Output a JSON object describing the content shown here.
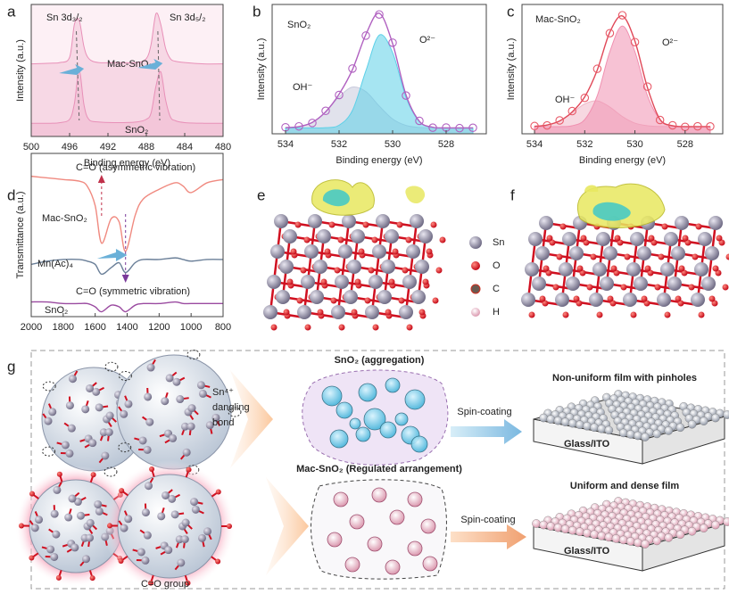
{
  "chart_data": [
    {
      "type": "line",
      "label": "a",
      "xlabel": "Binding energy (eV)",
      "ylabel": "Intensity (a.u.)",
      "annotations": [
        "Sn 3d₃/₂",
        "Sn 3d₅/₂"
      ],
      "x": [
        500,
        498,
        497,
        496,
        495.5,
        495,
        494.5,
        494,
        493,
        491,
        489,
        488,
        487.5,
        487,
        486.5,
        486,
        485.5,
        485,
        484,
        482,
        480
      ],
      "series": [
        {
          "name": "Mac-SnO₂",
          "color": "#e890b8",
          "style": "filled",
          "values": [
            55,
            55.5,
            56,
            60,
            85,
            88,
            68,
            59,
            56,
            56,
            56,
            59,
            70,
            93,
            85,
            67,
            59,
            57,
            56,
            55,
            55
          ]
        },
        {
          "name": "SnO₂",
          "color": "#e890b8",
          "style": "filled",
          "values": [
            10,
            10,
            10.5,
            13,
            25,
            50,
            24,
            13,
            11,
            10.5,
            11,
            13,
            18,
            38,
            49,
            28,
            15,
            12,
            10.5,
            10,
            10
          ]
        }
      ],
      "xlim": [
        500,
        480
      ],
      "ylim": [
        0,
        100
      ],
      "xticks": [
        500,
        496,
        492,
        488,
        484,
        480
      ]
    },
    {
      "type": "line",
      "label": "b",
      "xlabel": "Binding energy (eV)",
      "ylabel": "Intensity (a.u.)",
      "annotations": [
        "SnO₂",
        "OH⁻",
        "O²⁻"
      ],
      "x": [
        534,
        533.5,
        533,
        532.5,
        532,
        531.5,
        531,
        530.5,
        530,
        529.5,
        529,
        528.5,
        528,
        527.5,
        527
      ],
      "series": [
        {
          "color": "#c8cadc",
          "style": "filled",
          "values": [
            5.2,
            6.1,
            9.7,
            18.6,
            31.4,
            39.7,
            35.9,
            23.6,
            12.6,
            7.1,
            5.4,
            5.1,
            5,
            5,
            5
          ]
        },
        {
          "color": "#5cd0e8",
          "style": "filled",
          "values": [
            5,
            5,
            5,
            5.2,
            7.3,
            19.9,
            53.5,
            83.9,
            69.1,
            31,
            10.3,
            5.5,
            5,
            5,
            5
          ]
        },
        {
          "color": "#b060c0",
          "style": "line",
          "values": [
            5.2,
            6.1,
            9.7,
            18.8,
            33.7,
            54.6,
            84.4,
            102.5,
            76.7,
            33.1,
            10.7,
            5.6,
            5,
            5,
            5
          ]
        },
        {
          "color": "#b060c0",
          "style": "markers",
          "values": [
            5.5,
            6.3,
            9.2,
            19.5,
            33,
            55.5,
            83.5,
            101.5,
            77.5,
            32.5,
            11,
            5.2,
            5.3,
            4.8,
            5.1
          ]
        }
      ],
      "xlim": [
        534.5,
        526.5
      ],
      "ylim": [
        0,
        110
      ],
      "xticks": [
        534,
        532,
        530,
        528
      ]
    },
    {
      "type": "line",
      "label": "c",
      "xlabel": "Binding energy (eV)",
      "ylabel": "Intensity (a.u.)",
      "annotations": [
        "Mac-SnO₂",
        "OH⁻",
        "O²⁻"
      ],
      "x": [
        534,
        533.5,
        533,
        532.5,
        532,
        531.5,
        531,
        530.5,
        530,
        529.5,
        529,
        528.5,
        528,
        527.5,
        527
      ],
      "series": [
        {
          "color": "#f0b8c8",
          "style": "filled",
          "values": [
            5.2,
            6.1,
            8.9,
            14.6,
            20.8,
            22.9,
            18.6,
            12,
            7.4,
            5.6,
            5.1,
            5,
            5,
            5,
            5
          ]
        },
        {
          "color": "#f090b0",
          "style": "filled",
          "values": [
            5,
            5,
            5,
            5.6,
            9.9,
            26.5,
            57.1,
            75,
            57.1,
            26.5,
            9.9,
            5.6,
            5,
            5,
            5
          ]
        },
        {
          "color": "#e04858",
          "style": "line",
          "values": [
            5.2,
            6.1,
            8.9,
            15.2,
            25.7,
            44.4,
            70.7,
            82,
            64.5,
            32.1,
            10,
            5.6,
            5,
            5,
            5
          ]
        },
        {
          "color": "#e85a68",
          "style": "markers",
          "values": [
            5.4,
            5.8,
            9.3,
            15.8,
            25,
            45.2,
            70,
            82.5,
            63.8,
            32.8,
            9.6,
            5.9,
            4.8,
            5.2,
            5.1
          ]
        }
      ],
      "xlim": [
        534.5,
        526.5
      ],
      "ylim": [
        0,
        90
      ],
      "xticks": [
        534,
        532,
        530,
        528
      ]
    },
    {
      "type": "line",
      "label": "d",
      "xlabel": "Wavenumber (cm⁻¹)",
      "ylabel": "Transmittance (a.u.)",
      "annotations": [
        "C=O (asymmetric vibration)",
        "C=O (symmetric vibration)"
      ],
      "x": [
        2000,
        1900,
        1800,
        1700,
        1650,
        1600,
        1560,
        1500,
        1450,
        1410,
        1350,
        1300,
        1200,
        1100,
        1050,
        1000,
        900,
        800
      ],
      "series": [
        {
          "name": "Mac-SnO₂",
          "color": "#f08a80",
          "style": "line",
          "values": [
            86,
            85,
            84,
            83,
            80,
            68,
            45,
            60,
            58,
            40,
            62,
            72,
            78,
            82,
            80,
            76,
            82,
            84
          ]
        },
        {
          "name": "Mn(Ac)₄",
          "color": "#6a7f98",
          "style": "line",
          "values": [
            32,
            34,
            35,
            35,
            34,
            32,
            26,
            30,
            33,
            27,
            33,
            35,
            35,
            36,
            35,
            34,
            35,
            35
          ]
        },
        {
          "name": "SnO₂",
          "color": "#9a4aa0",
          "style": "line",
          "values": [
            9,
            9,
            8,
            8,
            8,
            6,
            3,
            7,
            6,
            3,
            7,
            8,
            8,
            9,
            8,
            8,
            8,
            8
          ]
        }
      ],
      "xlim": [
        2000,
        800
      ],
      "ylim": [
        0,
        100
      ],
      "xticks": [
        2000,
        1800,
        1600,
        1400,
        1200,
        1000,
        800
      ]
    }
  ],
  "panel_e": {
    "label": "e",
    "legend": [
      "Sn",
      "O",
      "C",
      "H"
    ]
  },
  "panel_f": {
    "label": "f"
  },
  "panel_g": {
    "label": "g",
    "top_title": "SnO₂ (aggregation)",
    "dangling": [
      "Sn⁴⁺",
      "dangling",
      "bond"
    ],
    "spin_top": "Spin-coating",
    "film_top": "Non-uniform film with pinholes",
    "substrate_top": "Glass/ITO",
    "bottom_title": "Mac-SnO₂ (Regulated arrangement)",
    "spin_bottom": "Spin-coating",
    "film_bottom": "Uniform and dense film",
    "substrate_bottom": "Glass/ITO",
    "group": "C=O group"
  }
}
